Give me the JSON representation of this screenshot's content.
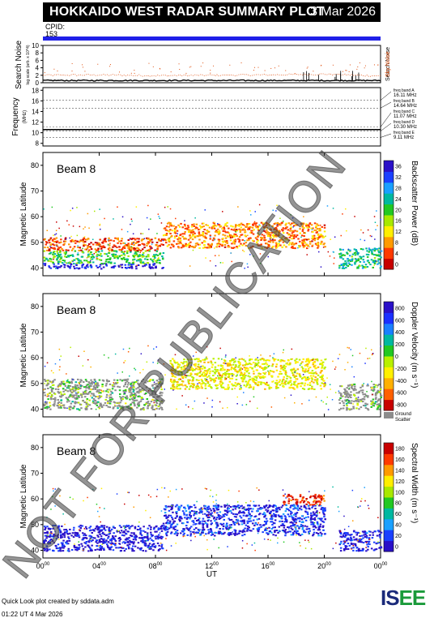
{
  "header": {
    "title": "HOKKAIDO WEST RADAR SUMMARY PLOT",
    "date": "3 Mar 2026",
    "cpid_label": "CPID:",
    "cpid_value": "153"
  },
  "noise_panel": {
    "ylabel_1": "Search Noise",
    "ylabel_2": "log scale (arb. x 10^4)",
    "yticks": [
      "0",
      "2",
      "4",
      "6",
      "8",
      "10"
    ],
    "legend_search": "Search Noise",
    "legend_sky": "Sky Noise",
    "ylim": [
      0,
      10
    ]
  },
  "freq_panel": {
    "ylabel": "Frequency",
    "unit": "(MHz)",
    "yticks": [
      "8",
      "10",
      "12",
      "14",
      "16",
      "18"
    ],
    "ylim": [
      7.5,
      18.5
    ],
    "bands": [
      {
        "label": "freq band A",
        "value": "16.11 MHz",
        "mhz": 16.11
      },
      {
        "label": "freq band B",
        "value": "14.64 MHz",
        "mhz": 14.64
      },
      {
        "label": "freq band C",
        "value": "11.07 MHz",
        "mhz": 11.07
      },
      {
        "label": "freq band D",
        "value": "10.30 MHz",
        "mhz": 10.3
      },
      {
        "label": "freq band E",
        "value": "9.11 MHz",
        "mhz": 9.11
      }
    ]
  },
  "panels": [
    {
      "beam": "Beam 8",
      "ylabel": "Magnetic Latitude",
      "yticks": [
        "40",
        "50",
        "60",
        "70",
        "80"
      ],
      "cbar_label": "Backscatter Power (dB)",
      "cbar_ticks": [
        "0",
        "4",
        "8",
        "12",
        "16",
        "20",
        "24",
        "28",
        "32",
        "36"
      ],
      "cbar_colors": [
        "#c80000",
        "#ff3a00",
        "#ff9a00",
        "#ffee00",
        "#a8e800",
        "#22c822",
        "#00b8a0",
        "#1aa0ff",
        "#1a40ff",
        "#2a10c8"
      ],
      "ground_scatter": false
    },
    {
      "beam": "Beam 8",
      "ylabel": "Magnetic Latitude",
      "yticks": [
        "40",
        "50",
        "60",
        "70",
        "80"
      ],
      "cbar_label": "Doppler Velocity (m s⁻¹)",
      "cbar_ticks": [
        "-800",
        "-600",
        "-400",
        "-200",
        "0",
        "200",
        "400",
        "600",
        "800"
      ],
      "cbar_colors": [
        "#c80000",
        "#ff6000",
        "#ffb000",
        "#fff000",
        "#b8f000",
        "#22c822",
        "#00b8a0",
        "#1a80ff",
        "#1a30ff",
        "#2a10c8"
      ],
      "ground_scatter": true,
      "ground_label_1": "Ground",
      "ground_label_2": "Scatter"
    },
    {
      "beam": "Beam 8",
      "ylabel": "Magnetic Latitude",
      "yticks": [
        "40",
        "50",
        "60",
        "70",
        "80"
      ],
      "cbar_label": "Spectral Width (m s⁻¹)",
      "cbar_ticks": [
        "0",
        "20",
        "40",
        "60",
        "80",
        "100",
        "120",
        "140",
        "160",
        "180"
      ],
      "cbar_colors": [
        "#2a10c8",
        "#1a40ff",
        "#1aa0ff",
        "#00b8a0",
        "#22c822",
        "#a8e800",
        "#ffee00",
        "#ff9a00",
        "#ff3a00",
        "#c80000"
      ],
      "ground_scatter": false
    }
  ],
  "x_axis": {
    "label": "UT",
    "ticks": [
      {
        "h": "00",
        "m": "00"
      },
      {
        "h": "04",
        "m": "00"
      },
      {
        "h": "08",
        "m": "00"
      },
      {
        "h": "12",
        "m": "00"
      },
      {
        "h": "16",
        "m": "00"
      },
      {
        "h": "20",
        "m": "00"
      },
      {
        "h": "00",
        "m": "00"
      }
    ]
  },
  "watermark": "NOT FOR PUBLICATION",
  "footer": {
    "line1": "Quick Look plot created by sddata.adm",
    "line2": "01:22 UT  4 Mar 2026"
  },
  "logo": {
    "text": "ISEE",
    "colors": [
      "#1a2a7a",
      "#1a2a7a",
      "#1a9a3a",
      "#1a9a3a"
    ]
  },
  "chart_data": [
    {
      "type": "line",
      "title": "Search Noise",
      "x": [
        0,
        4,
        8,
        12,
        16,
        20,
        24
      ],
      "series": [
        {
          "name": "Search Noise",
          "values": [
            2.0,
            2.1,
            1.9,
            2.0,
            2.1,
            2.3,
            1.8
          ]
        },
        {
          "name": "Sky Noise",
          "values": [
            0.6,
            0.6,
            0.6,
            0.6,
            0.6,
            0.6,
            0.6
          ]
        }
      ],
      "xlabel": "UT",
      "ylim": [
        0,
        10
      ]
    },
    {
      "type": "line",
      "title": "Frequency",
      "x": [
        0,
        24
      ],
      "series": [
        {
          "name": "Operating Frequency",
          "values": [
            10.6,
            10.6
          ]
        }
      ],
      "ylabel": "Frequency (MHz)",
      "ylim": [
        7.5,
        18.5
      ]
    },
    {
      "type": "heatmap",
      "title": "Backscatter Power (dB)",
      "xlabel": "UT",
      "ylabel": "Magnetic Latitude",
      "x_range": [
        0,
        24
      ],
      "y_range": [
        37,
        85
      ],
      "colorbar_range": [
        0,
        36
      ],
      "features": [
        {
          "ut_start": 0,
          "ut_end": 8.5,
          "lat_start": 40,
          "lat_end": 42,
          "value": 34
        },
        {
          "ut_start": 0,
          "ut_end": 8.5,
          "lat_start": 42,
          "lat_end": 47,
          "value": 20
        },
        {
          "ut_start": 0,
          "ut_end": 8.5,
          "lat_start": 47,
          "lat_end": 52,
          "value": 6
        },
        {
          "ut_start": 8.5,
          "ut_end": 20,
          "lat_start": 48,
          "lat_end": 58,
          "value": 8
        },
        {
          "ut_start": 21,
          "ut_end": 24,
          "lat_start": 40,
          "lat_end": 48,
          "value": 22
        }
      ]
    },
    {
      "type": "heatmap",
      "title": "Doppler Velocity (m s-1)",
      "xlabel": "UT",
      "ylabel": "Magnetic Latitude",
      "x_range": [
        0,
        24
      ],
      "y_range": [
        37,
        85
      ],
      "colorbar_range": [
        -800,
        800
      ],
      "features": [
        {
          "ut_start": 0,
          "ut_end": 8.5,
          "lat_start": 40,
          "lat_end": 52,
          "value": 0,
          "ground_scatter": true
        },
        {
          "ut_start": 9,
          "ut_end": 20,
          "lat_start": 48,
          "lat_end": 60,
          "value": -200
        },
        {
          "ut_start": 21,
          "ut_end": 24,
          "lat_start": 40,
          "lat_end": 50,
          "value": 0,
          "ground_scatter": true
        }
      ]
    },
    {
      "type": "heatmap",
      "title": "Spectral Width (m s-1)",
      "xlabel": "UT",
      "ylabel": "Magnetic Latitude",
      "x_range": [
        0,
        24
      ],
      "y_range": [
        37,
        85
      ],
      "colorbar_range": [
        0,
        180
      ],
      "features": [
        {
          "ut_start": 0,
          "ut_end": 8.5,
          "lat_start": 40,
          "lat_end": 50,
          "value": 10
        },
        {
          "ut_start": 8.5,
          "ut_end": 20,
          "lat_start": 46,
          "lat_end": 58,
          "value": 20
        },
        {
          "ut_start": 17,
          "ut_end": 20,
          "lat_start": 58,
          "lat_end": 62,
          "value": 160
        },
        {
          "ut_start": 21,
          "ut_end": 24,
          "lat_start": 40,
          "lat_end": 48,
          "value": 15
        }
      ]
    }
  ]
}
